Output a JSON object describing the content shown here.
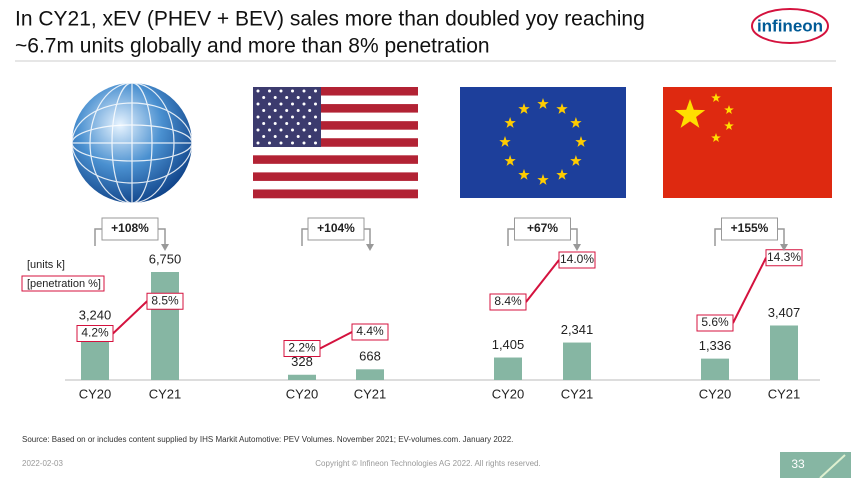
{
  "slide": {
    "title_lines": [
      "In CY21, xEV (PHEV + BEV) sales more than doubled yoy reaching",
      "~6.7m units globally and more than 8% penetration"
    ],
    "logo": "infineon",
    "source": "Source: Based on or includes content supplied by IHS Markit Automotive: PEV Volumes. November 2021; EV-volumes.com. January 2022.",
    "date": "2022-02-03",
    "copyright": "Copyright © Infineon Technologies AG 2022. All rights reserved.",
    "page": "33"
  },
  "chart_data": [
    {
      "type": "bar",
      "color": "#86b6a3",
      "line_color": "#d4123e",
      "categories": [
        "CY20",
        "CY21"
      ],
      "values": [
        3240,
        6750
      ],
      "value_labels": [
        "3,240",
        "6,750"
      ],
      "penetration": {
        "values": [
          4.2,
          8.5
        ],
        "value_labels": [
          "4.2%",
          "8.5%"
        ]
      },
      "growth": "+108%",
      "unit_label": "[units k]",
      "penetration_label": "[penetration %]"
    },
    {
      "type": "bar",
      "color": "#86b6a3",
      "line_color": "#d4123e",
      "categories": [
        "CY20",
        "CY21"
      ],
      "values": [
        328,
        668
      ],
      "value_labels": [
        "328",
        "668"
      ],
      "penetration": {
        "values": [
          2.2,
          4.4
        ],
        "value_labels": [
          "2.2%",
          "4.4%"
        ]
      },
      "growth": "+104%"
    },
    {
      "type": "bar",
      "color": "#86b6a3",
      "line_color": "#d4123e",
      "categories": [
        "CY20",
        "CY21"
      ],
      "values": [
        1405,
        2341
      ],
      "value_labels": [
        "1,405",
        "2,341"
      ],
      "penetration": {
        "values": [
          8.4,
          14.0
        ],
        "value_labels": [
          "8.4%",
          "14.0%"
        ]
      },
      "growth": "+67%"
    },
    {
      "type": "bar",
      "color": "#86b6a3",
      "line_color": "#d4123e",
      "categories": [
        "CY20",
        "CY21"
      ],
      "values": [
        1336,
        3407
      ],
      "value_labels": [
        "1,336",
        "3,407"
      ],
      "penetration": {
        "values": [
          5.6,
          14.3
        ],
        "value_labels": [
          "5.6%",
          "14.3%"
        ]
      },
      "growth": "+155%"
    }
  ]
}
